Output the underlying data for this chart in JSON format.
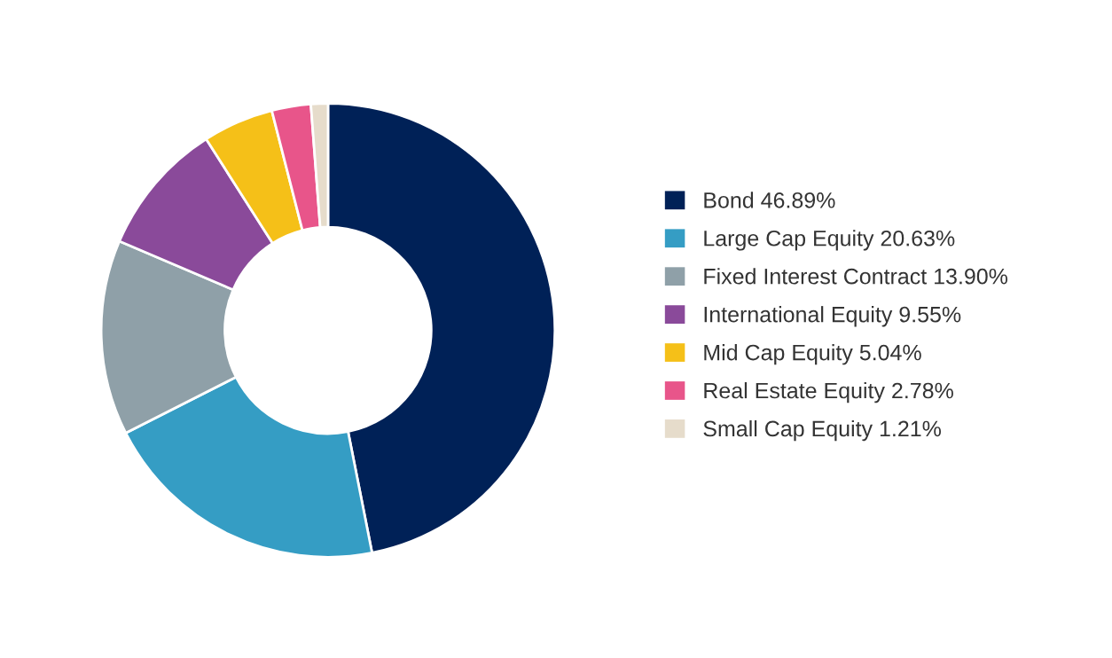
{
  "chart_data": {
    "type": "donut",
    "categories": [
      "Bond",
      "Large Cap Equity",
      "Fixed Interest Contract",
      "International Equity",
      "Mid Cap Equity",
      "Real Estate Equity",
      "Small Cap Equity"
    ],
    "values": [
      46.89,
      20.63,
      13.9,
      9.55,
      5.04,
      2.78,
      1.21
    ],
    "value_labels": [
      "46.89%",
      "20.63%",
      "13.90%",
      "9.55%",
      "5.04%",
      "2.78%",
      "1.21%"
    ],
    "colors": [
      "#002157",
      "#359dc4",
      "#8fa0a8",
      "#8a4a9a",
      "#f5c018",
      "#e8558a",
      "#e6dccb"
    ],
    "legend": "right"
  }
}
